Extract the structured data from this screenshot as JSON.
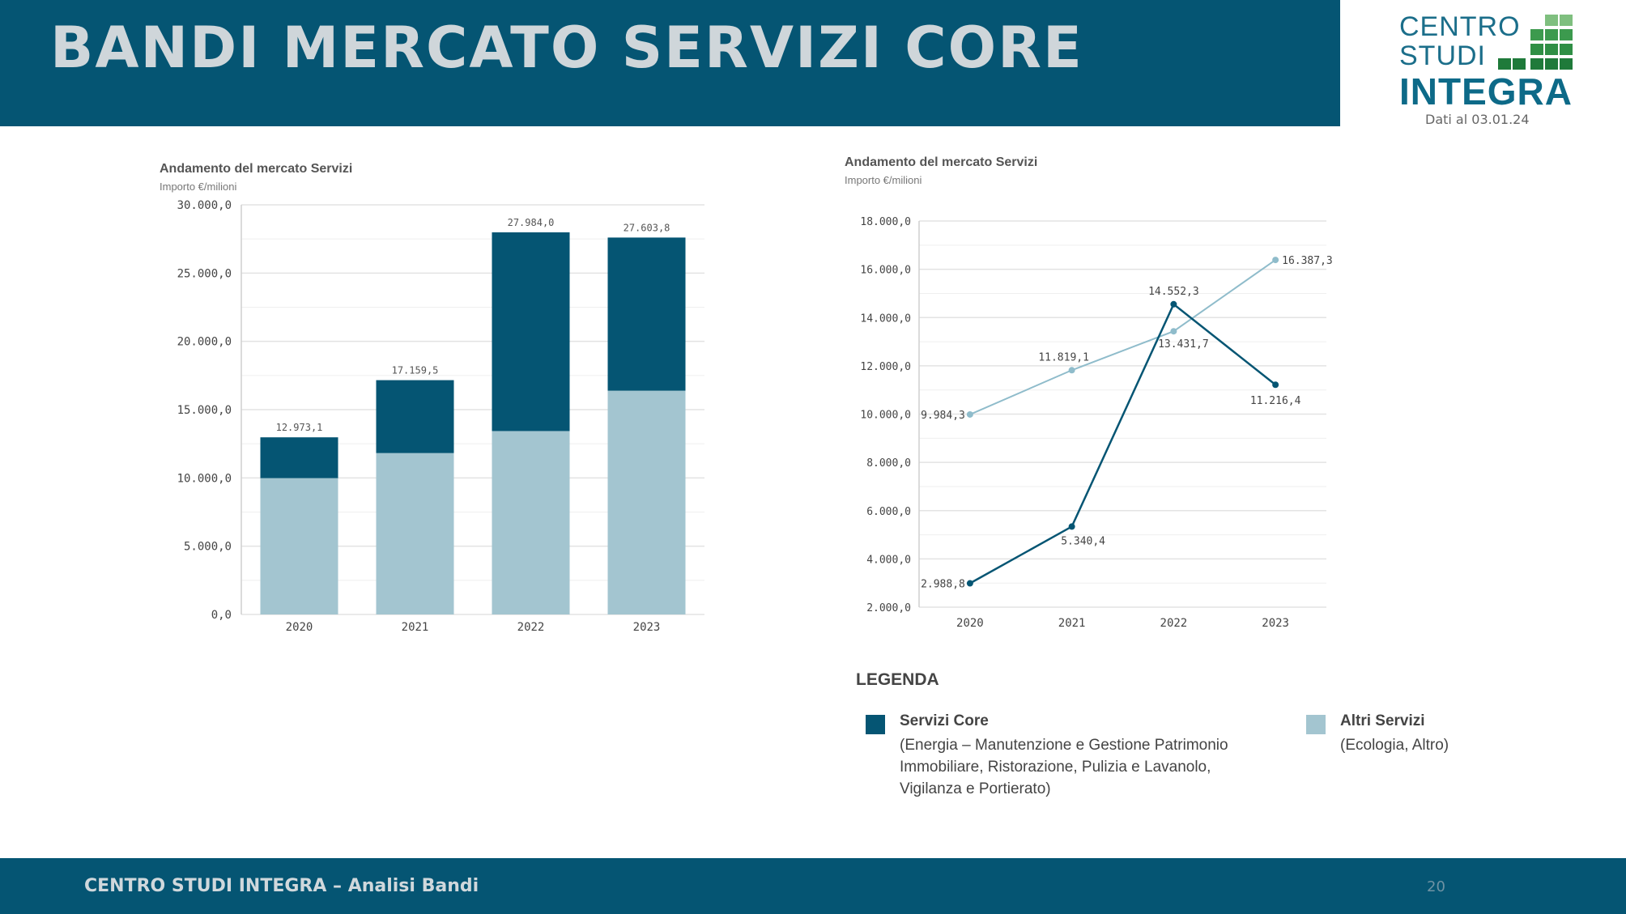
{
  "header": {
    "title": "BANDI MERCATO SERVIZI CORE"
  },
  "logo": {
    "line1": "CENTRO",
    "line2": "STUDI",
    "line3": "INTEGRA",
    "date": "Dati al 03.01.24"
  },
  "colors": {
    "core": "#055573",
    "altri": "#a3c5d0",
    "header": "#055573",
    "grid": "#e3e3e3"
  },
  "chart_data": [
    {
      "type": "bar",
      "stacked": true,
      "title": "Andamento del mercato Servizi",
      "subtitle": "Importo €/milioni",
      "categories": [
        "2020",
        "2021",
        "2022",
        "2023"
      ],
      "series": [
        {
          "name": "Altri Servizi",
          "values": [
            9984.3,
            11819.1,
            13431.7,
            16387.3
          ]
        },
        {
          "name": "Servizi Core",
          "values": [
            2988.8,
            5340.4,
            14552.3,
            11216.4
          ]
        }
      ],
      "totals": [
        12973.1,
        17159.5,
        27984.0,
        27603.8
      ],
      "total_labels": [
        "12.973,1",
        "17.159,5",
        "27.984,0",
        "27.603,8"
      ],
      "ylim": [
        0,
        30000
      ],
      "yticks": [
        0,
        5000,
        10000,
        15000,
        20000,
        25000,
        30000
      ],
      "ytick_labels": [
        "0,0",
        "5.000,0",
        "10.000,0",
        "15.000,0",
        "20.000,0",
        "25.000,0",
        "30.000,0"
      ]
    },
    {
      "type": "line",
      "title": "Andamento del mercato Servizi",
      "subtitle": "Importo €/milioni",
      "categories": [
        "2020",
        "2021",
        "2022",
        "2023"
      ],
      "series": [
        {
          "name": "Altri Servizi",
          "values": [
            9984.3,
            11819.1,
            13431.7,
            16387.3
          ],
          "labels": [
            "9.984,3",
            "11.819,1",
            "13.431,7",
            "16.387,3"
          ]
        },
        {
          "name": "Servizi Core",
          "values": [
            2988.8,
            5340.4,
            14552.3,
            11216.4
          ],
          "labels": [
            "2.988,8",
            "5.340,4",
            "14.552,3",
            "11.216,4"
          ]
        }
      ],
      "ylim": [
        2000,
        18000
      ],
      "yticks": [
        2000,
        4000,
        6000,
        8000,
        10000,
        12000,
        14000,
        16000,
        18000
      ],
      "ytick_labels": [
        "2.000,0",
        "4.000,0",
        "6.000,0",
        "8.000,0",
        "10.000,0",
        "12.000,0",
        "14.000,0",
        "16.000,0",
        "18.000,0"
      ]
    }
  ],
  "legend": {
    "title": "LEGENDA",
    "core_label": "Servizi Core",
    "core_desc": "(Energia – Manutenzione e Gestione Patrimonio Immobiliare, Ristorazione, Pulizia e Lavanolo, Vigilanza e Portierato)",
    "altri_label": "Altri Servizi",
    "altri_desc": "(Ecologia, Altro)"
  },
  "footer": {
    "text": "CENTRO STUDI INTEGRA – Analisi Bandi",
    "page": "20"
  }
}
